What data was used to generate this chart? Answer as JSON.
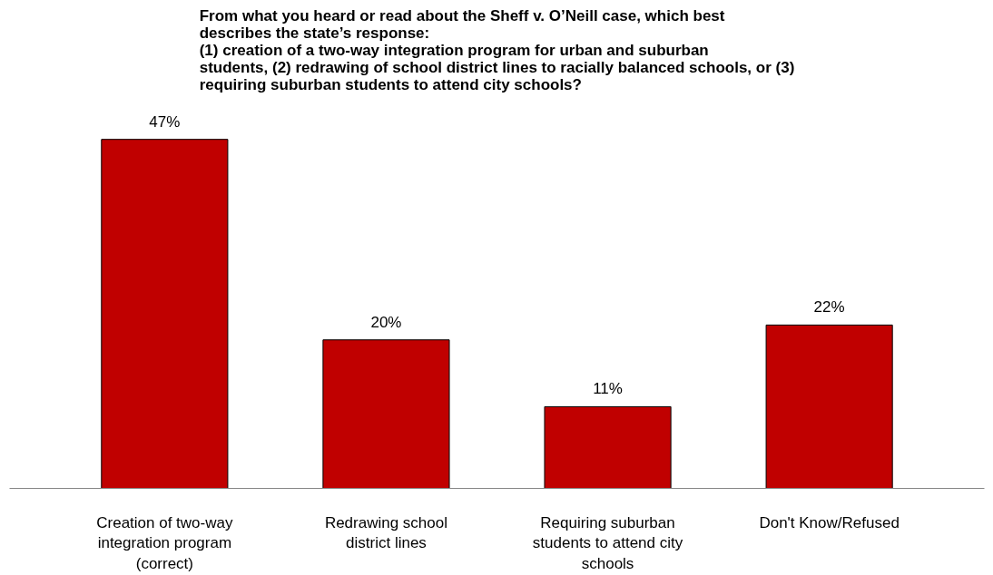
{
  "chart_data": {
    "type": "bar",
    "title": "From what you heard or read about the Sheff v. O’Neill case, which best\ndescribes the state’s response:\n(1) creation of a two-way integration program for urban and suburban\nstudents, (2) redrawing of school district lines to racially balanced schools, or (3)\nrequiring suburban students to attend city schools?",
    "categories": [
      "Creation of two-way integration program (correct)",
      "Redrawing school district lines",
      "Requiring suburban students to attend city schools",
      "Don't Know/Refused"
    ],
    "values": [
      47,
      20,
      11,
      22
    ],
    "value_labels": [
      "47%",
      "20%",
      "11%",
      "22%"
    ],
    "color": "#c00000",
    "grid": false
  }
}
